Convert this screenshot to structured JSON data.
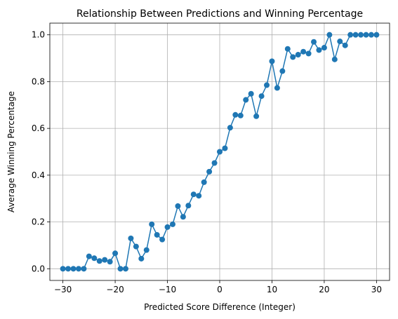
{
  "chart_data": {
    "type": "line",
    "title": "Relationship Between Predictions and Winning Percentage",
    "xlabel": "Predicted Score Difference (Integer)",
    "ylabel": "Average Winning Percentage",
    "xlim": [
      -32.5,
      32.5
    ],
    "ylim": [
      -0.05,
      1.05
    ],
    "xticks": [
      -30,
      -20,
      -10,
      0,
      10,
      20,
      30
    ],
    "xtick_labels": [
      "−30",
      "−20",
      "−10",
      "0",
      "10",
      "20",
      "30"
    ],
    "yticks": [
      0.0,
      0.2,
      0.4,
      0.6,
      0.8,
      1.0
    ],
    "ytick_labels": [
      "0.0",
      "0.2",
      "0.4",
      "0.6",
      "0.8",
      "1.0"
    ],
    "grid": true,
    "color": "#1f77b4",
    "markers": true,
    "series": [
      {
        "x": [
          -30,
          -29,
          -28,
          -27,
          -26,
          -25,
          -24,
          -23,
          -22,
          -21,
          -20,
          -19,
          -18,
          -17,
          -16,
          -15,
          -14,
          -13,
          -12,
          -11,
          -10,
          -9,
          -8,
          -7,
          -6,
          -5,
          -4,
          -3,
          -2,
          -1,
          0,
          1,
          2,
          3,
          4,
          5,
          6,
          7,
          8,
          9,
          10,
          11,
          12,
          13,
          14,
          15,
          16,
          17,
          18,
          19,
          20,
          21,
          22,
          23,
          24,
          25,
          26,
          27,
          28,
          29,
          30
        ],
        "y": [
          0.0,
          0.0,
          0.0,
          0.0,
          0.0,
          0.053,
          0.045,
          0.033,
          0.038,
          0.03,
          0.066,
          0.0,
          0.0,
          0.13,
          0.095,
          0.043,
          0.08,
          0.19,
          0.145,
          0.125,
          0.178,
          0.19,
          0.268,
          0.222,
          0.27,
          0.318,
          0.312,
          0.37,
          0.415,
          0.452,
          0.5,
          0.515,
          0.603,
          0.658,
          0.655,
          0.722,
          0.748,
          0.652,
          0.738,
          0.785,
          0.887,
          0.773,
          0.845,
          0.94,
          0.905,
          0.915,
          0.928,
          0.92,
          0.97,
          0.935,
          0.945,
          1.0,
          0.895,
          0.972,
          0.955,
          1.0,
          1.0,
          1.0,
          1.0,
          1.0,
          1.0
        ]
      }
    ]
  }
}
